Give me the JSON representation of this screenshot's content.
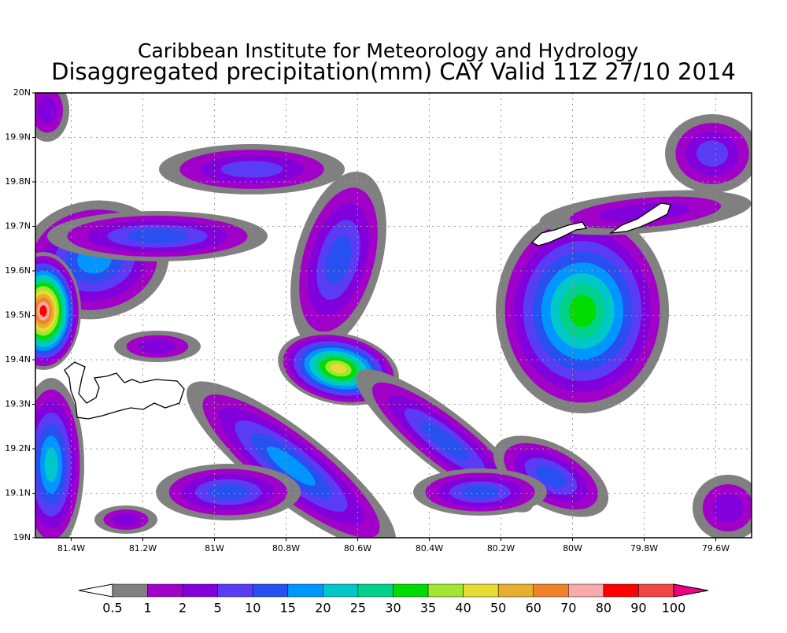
{
  "map": {
    "title": "Caribbean Institute for Meteorology and Hydrology",
    "subtitle": "Disaggregated precipitation(mm) CAY Valid 11Z 27/10 2014",
    "xlim": [
      -81.5,
      -79.5
    ],
    "ylim": [
      19,
      20
    ],
    "xticks": [
      {
        "value": -81.4,
        "label": "81.4W"
      },
      {
        "value": -81.2,
        "label": "81.2W"
      },
      {
        "value": -81,
        "label": "81W"
      },
      {
        "value": -80.8,
        "label": "80.8W"
      },
      {
        "value": -80.6,
        "label": "80.6W"
      },
      {
        "value": -80.4,
        "label": "80.4W"
      },
      {
        "value": -80.2,
        "label": "80.2W"
      },
      {
        "value": -80,
        "label": "80W"
      },
      {
        "value": -79.8,
        "label": "79.8W"
      },
      {
        "value": -79.6,
        "label": "79.6W"
      }
    ],
    "yticks": [
      {
        "value": 19,
        "label": "19N"
      },
      {
        "value": 19.1,
        "label": "19.1N"
      },
      {
        "value": 19.2,
        "label": "19.2N"
      },
      {
        "value": 19.3,
        "label": "19.3N"
      },
      {
        "value": 19.4,
        "label": "19.4N"
      },
      {
        "value": 19.5,
        "label": "19.5N"
      },
      {
        "value": 19.6,
        "label": "19.6N"
      },
      {
        "value": 19.7,
        "label": "19.7N"
      },
      {
        "value": 19.8,
        "label": "19.8N"
      },
      {
        "value": 19.9,
        "label": "19.9N"
      },
      {
        "value": 20,
        "label": "20N"
      }
    ],
    "grid": true,
    "colorbar": {
      "levels": [
        0.5,
        1,
        2,
        5,
        10,
        15,
        20,
        25,
        30,
        35,
        40,
        50,
        60,
        70,
        80,
        90,
        100
      ],
      "colors": [
        "#ffffff",
        "#808080",
        "#a000c8",
        "#8200dc",
        "#5a3cf5",
        "#2850f0",
        "#0096ff",
        "#00c8c8",
        "#00d28c",
        "#00dc00",
        "#a0e632",
        "#e6dc32",
        "#e6af2d",
        "#f08228",
        "#faaaaa",
        "#ff0000",
        "#f04646",
        "#f00082"
      ]
    }
  }
}
